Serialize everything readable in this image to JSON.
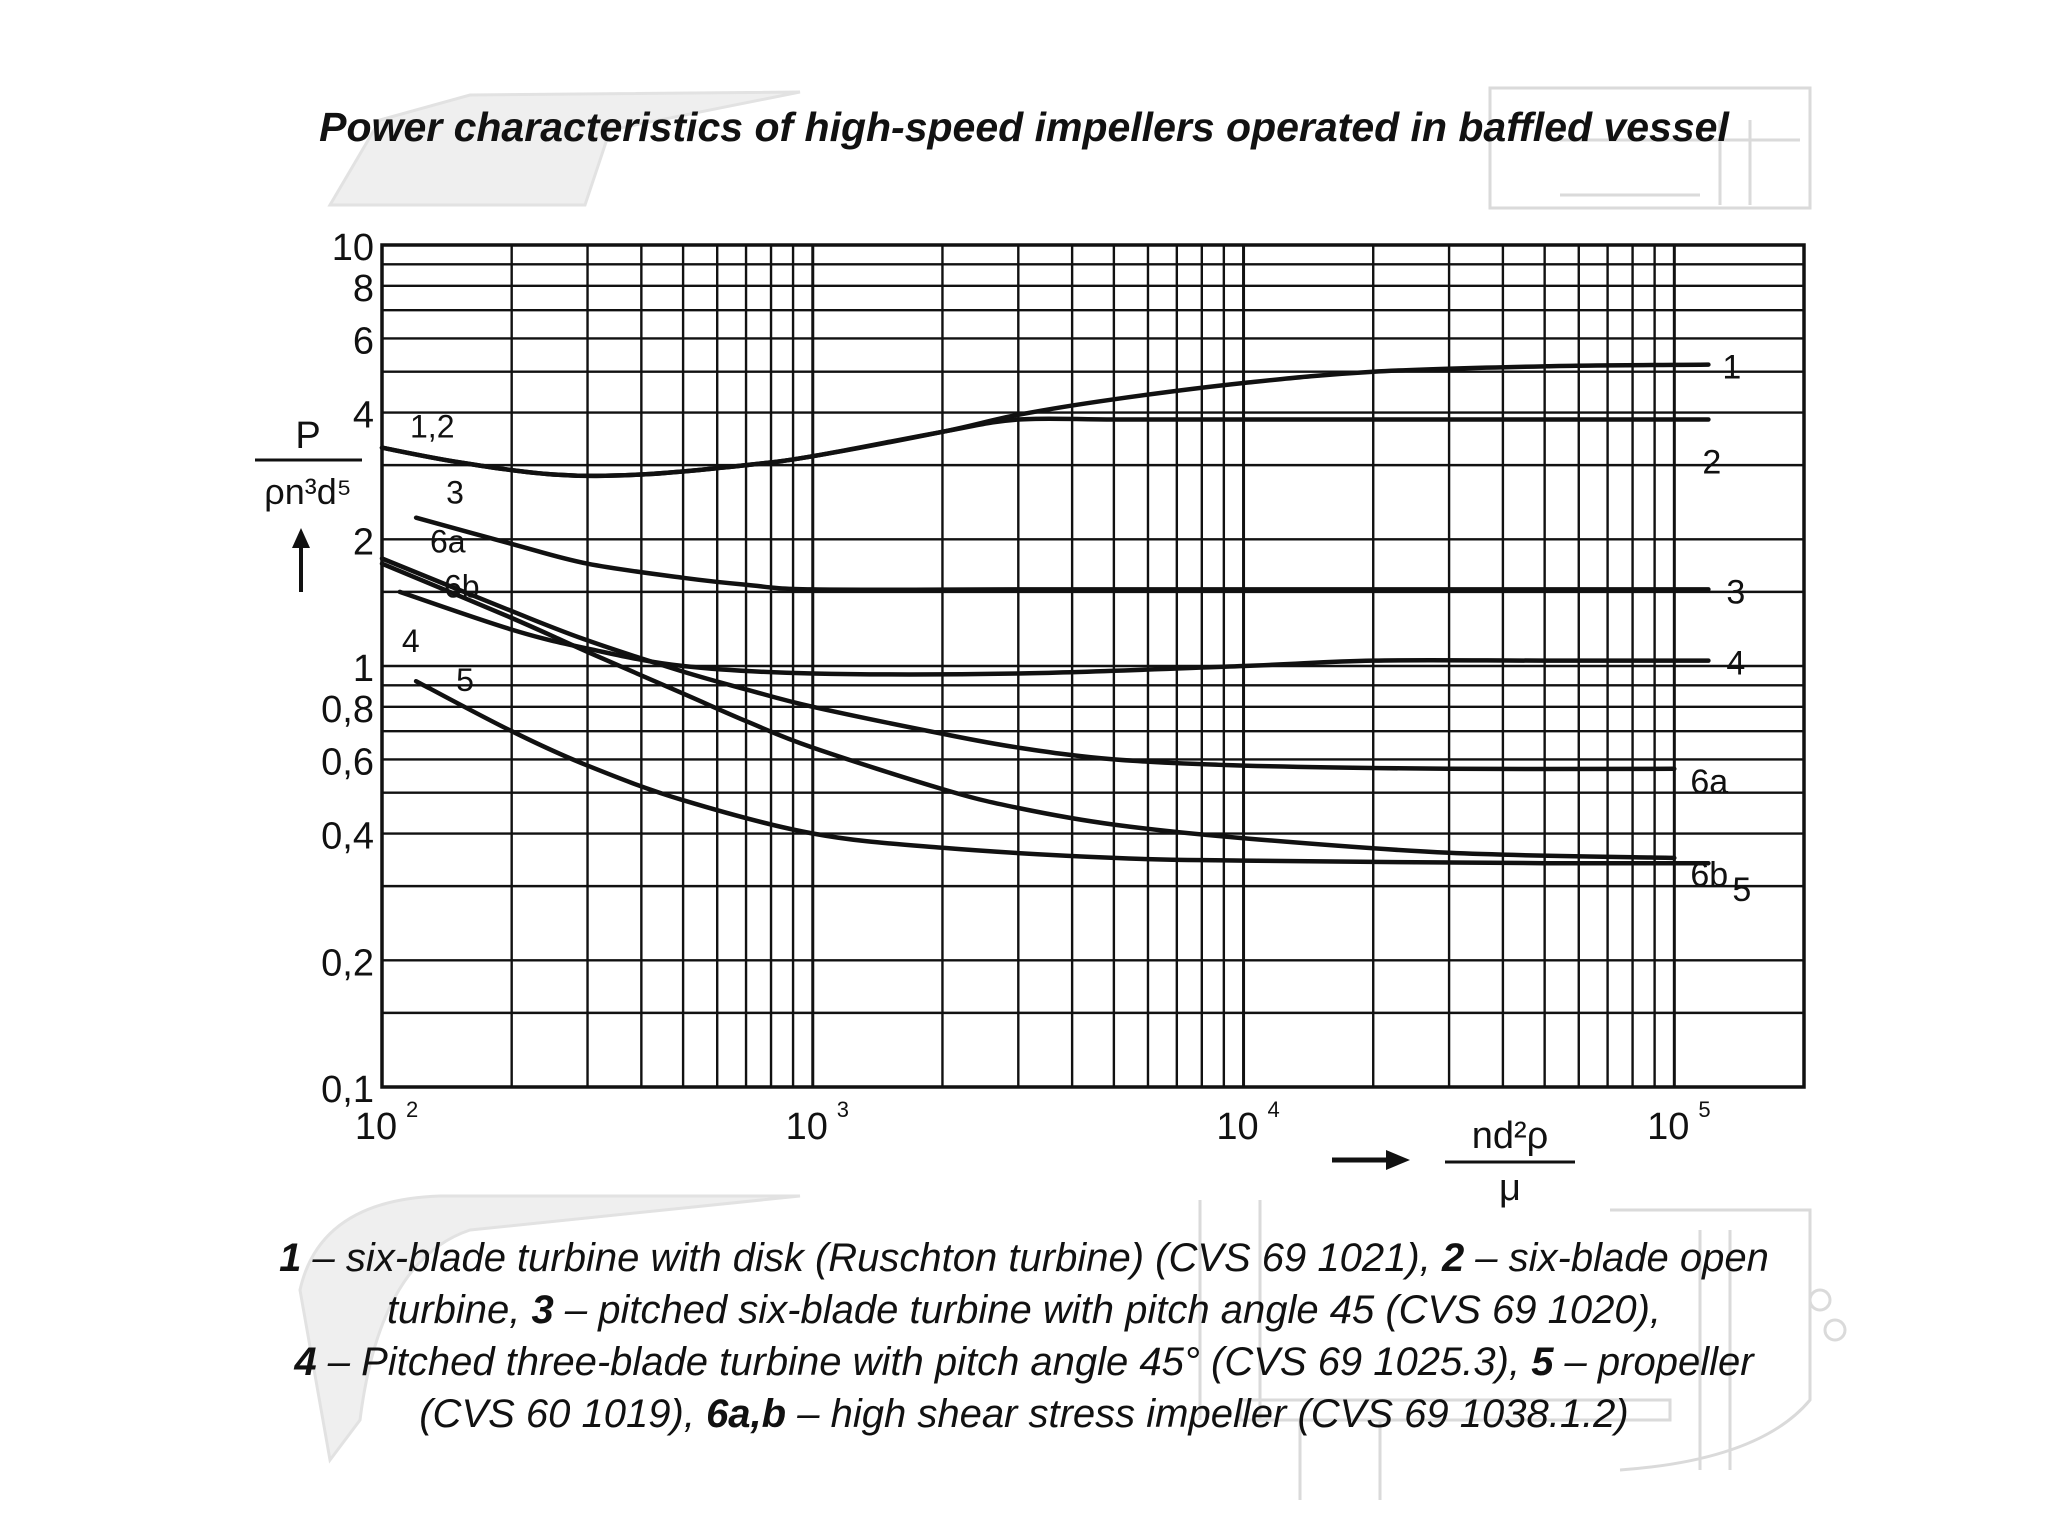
{
  "title": "Power characteristics of high-speed impellers operated in baffled vessel",
  "chart_data": {
    "type": "line",
    "x_scale": "log",
    "y_scale": "log",
    "xlim": [
      100,
      200000
    ],
    "ylim": [
      0.1,
      10
    ],
    "grid": true,
    "ylabel": {
      "numerator": "P",
      "denominator": "ρn³d⁵"
    },
    "xlabel": {
      "numerator": "nd²ρ",
      "denominator": "μ"
    },
    "x_ticks": [
      {
        "value": 100,
        "base": "10",
        "exp": "2"
      },
      {
        "value": 1000,
        "base": "10",
        "exp": "3"
      },
      {
        "value": 10000,
        "base": "10",
        "exp": "4"
      },
      {
        "value": 100000,
        "base": "10",
        "exp": "5"
      }
    ],
    "y_ticks": [
      {
        "value": 10,
        "label": "10"
      },
      {
        "value": 8,
        "label": "8"
      },
      {
        "value": 6,
        "label": "6"
      },
      {
        "value": 4,
        "label": "4"
      },
      {
        "value": 2,
        "label": "2"
      },
      {
        "value": 1,
        "label": "1"
      },
      {
        "value": 0.8,
        "label": "0,8"
      },
      {
        "value": 0.6,
        "label": "0,6"
      },
      {
        "value": 0.4,
        "label": "0,4"
      },
      {
        "value": 0.2,
        "label": "0,2"
      },
      {
        "value": 0.1,
        "label": "0,1"
      }
    ],
    "series": [
      {
        "name": "1",
        "start_label": "1,2",
        "x": [
          100,
          150,
          250,
          400,
          700,
          1000,
          2000,
          3000,
          5000,
          10000,
          20000,
          50000,
          120000
        ],
        "y": [
          3.3,
          3.05,
          2.85,
          2.85,
          3.0,
          3.15,
          3.6,
          3.95,
          4.3,
          4.7,
          5.0,
          5.15,
          5.2
        ]
      },
      {
        "name": "2",
        "x": [
          100,
          150,
          250,
          400,
          700,
          1000,
          2000,
          3000,
          5000,
          10000,
          50000,
          120000
        ],
        "y": [
          3.3,
          3.05,
          2.85,
          2.85,
          3.0,
          3.15,
          3.6,
          3.85,
          3.85,
          3.85,
          3.85,
          3.85
        ]
      },
      {
        "name": "3",
        "start_label": "3",
        "x": [
          120,
          200,
          300,
          500,
          700,
          1000,
          3000,
          10000,
          120000
        ],
        "y": [
          2.25,
          1.95,
          1.75,
          1.62,
          1.56,
          1.52,
          1.52,
          1.52,
          1.52
        ]
      },
      {
        "name": "4",
        "start_label": "4",
        "x": [
          110,
          200,
          300,
          500,
          1000,
          3000,
          10000,
          20000,
          50000,
          120000
        ],
        "y": [
          1.5,
          1.22,
          1.1,
          1.0,
          0.96,
          0.96,
          1.0,
          1.03,
          1.03,
          1.03
        ]
      },
      {
        "name": "5",
        "start_label": "5",
        "x": [
          120,
          200,
          300,
          500,
          1000,
          2000,
          5000,
          10000,
          50000,
          120000
        ],
        "y": [
          0.92,
          0.7,
          0.58,
          0.48,
          0.4,
          0.37,
          0.35,
          0.345,
          0.34,
          0.34
        ]
      },
      {
        "name": "6a",
        "start_label": "6a",
        "x": [
          100,
          200,
          300,
          500,
          700,
          1000,
          2000,
          3000,
          5000,
          10000,
          30000,
          100000
        ],
        "y": [
          1.8,
          1.35,
          1.15,
          0.97,
          0.88,
          0.8,
          0.69,
          0.64,
          0.6,
          0.58,
          0.57,
          0.57
        ]
      },
      {
        "name": "6b",
        "start_label": "6b",
        "x": [
          100,
          200,
          300,
          500,
          700,
          1000,
          2000,
          3000,
          5000,
          10000,
          30000,
          100000
        ],
        "y": [
          1.75,
          1.3,
          1.08,
          0.86,
          0.74,
          0.64,
          0.51,
          0.46,
          0.42,
          0.39,
          0.36,
          0.35
        ]
      }
    ]
  },
  "caption": {
    "lines": [
      [
        {
          "t": "1",
          "b": true
        },
        {
          "t": " – six-blade turbine with disk (Ruschton turbine) (CVS 69 1021), "
        },
        {
          "t": "2",
          "b": true
        },
        {
          "t": " – six-blade open"
        }
      ],
      [
        {
          "t": "turbine, "
        },
        {
          "t": "3",
          "b": true
        },
        {
          "t": " – pitched six-blade turbine with pitch angle 45 (CVS 69 1020),"
        }
      ],
      [
        {
          "t": "4",
          "b": true
        },
        {
          "t": " – Pitched three-blade turbine with pitch angle 45° (CVS 69 1025.3), "
        },
        {
          "t": "5",
          "b": true
        },
        {
          "t": " – propeller"
        }
      ],
      [
        {
          "t": "(CVS 60 1019), "
        },
        {
          "t": "6a,b",
          "b": true
        },
        {
          "t": " – high shear stress impeller (CVS 69 1038.1.2)"
        }
      ]
    ]
  }
}
